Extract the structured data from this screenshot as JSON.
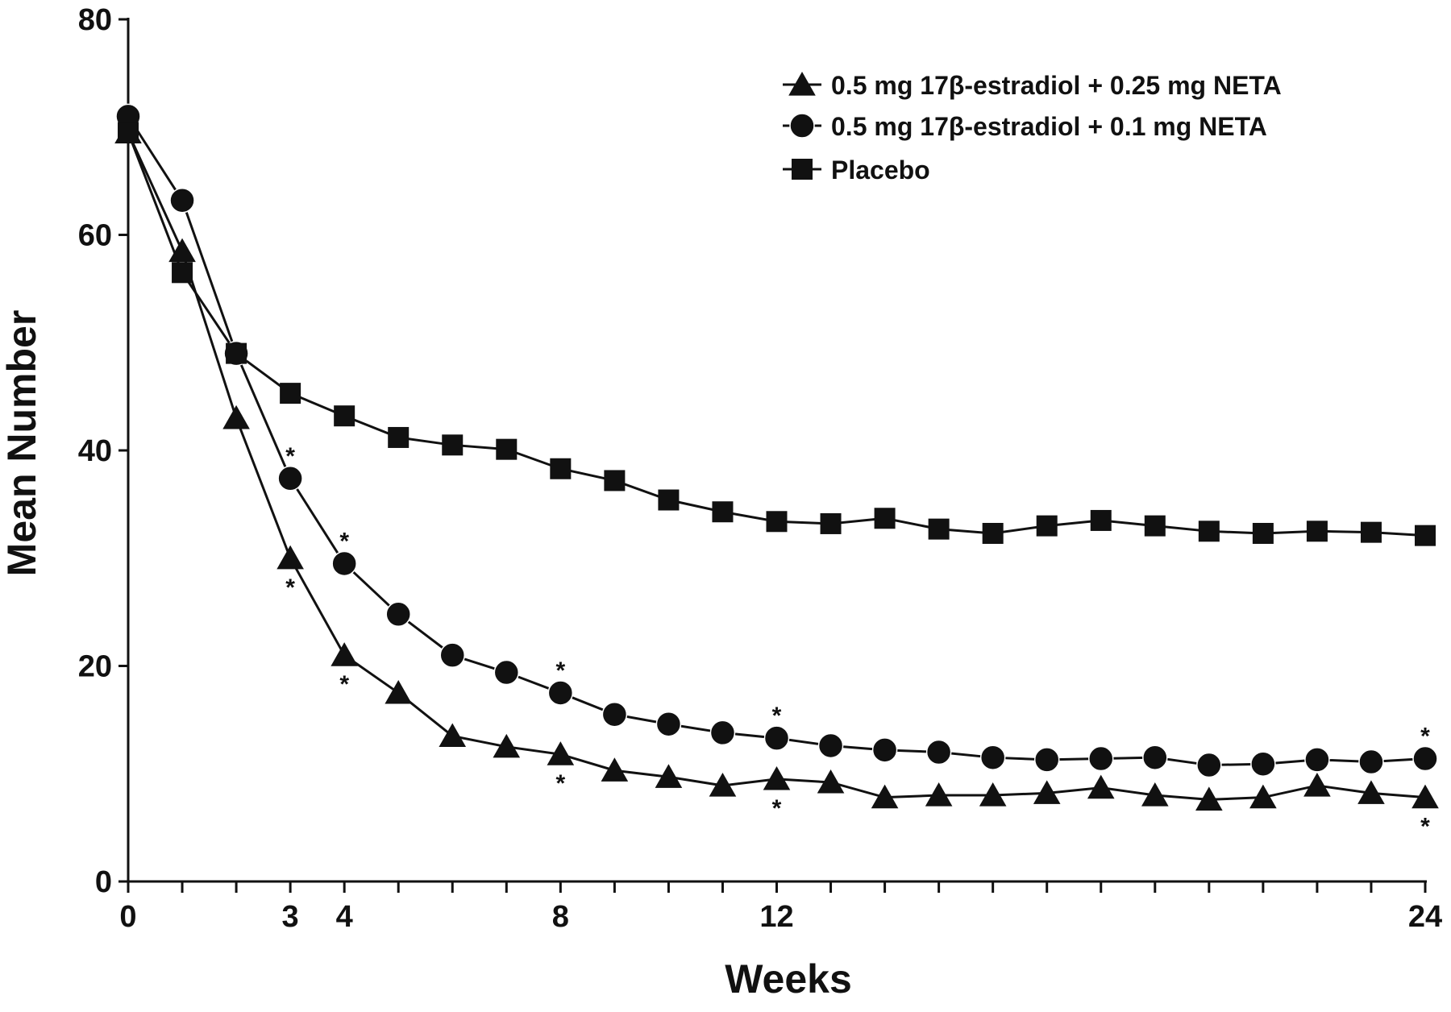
{
  "chart_data": {
    "type": "line",
    "xlabel": "Weeks",
    "ylabel": "Mean Number",
    "xlim": [
      0,
      24
    ],
    "ylim": [
      0,
      80
    ],
    "x_ticks_labeled": [
      "0",
      "3",
      "4",
      "8",
      "12",
      "24"
    ],
    "y_ticks_labeled": [
      "0",
      "20",
      "40",
      "60",
      "80"
    ],
    "grid": false,
    "legend_position": "top-right",
    "series": [
      {
        "name": "0.5 mg 17β-estradiol + 0.25 mg NETA",
        "marker": "triangle",
        "values": [
          69.5,
          58.5,
          43,
          30,
          21,
          17.5,
          13.5,
          12.5,
          11.8,
          10.3,
          9.7,
          8.9,
          9.5,
          9.2,
          7.8,
          8,
          8,
          8.2,
          8.7,
          8,
          7.6,
          7.8,
          8.9,
          8.2,
          7.8
        ],
        "significance_markers_below": [
          3,
          4,
          8,
          12,
          24
        ]
      },
      {
        "name": "0.5 mg 17β-estradiol + 0.1 mg NETA",
        "marker": "circle",
        "values": [
          71,
          63.2,
          49,
          37.4,
          29.5,
          24.8,
          21,
          19.4,
          17.5,
          15.5,
          14.6,
          13.8,
          13.3,
          12.6,
          12.2,
          12,
          11.5,
          11.3,
          11.4,
          11.5,
          10.8,
          10.9,
          11.3,
          11.1,
          11.4
        ],
        "significance_markers_above": [
          3,
          4,
          8,
          12,
          24
        ]
      },
      {
        "name": "Placebo",
        "marker": "square",
        "values": [
          69.5,
          56.5,
          49,
          45.3,
          43.2,
          41.2,
          40.5,
          40.1,
          38.3,
          37.2,
          35.4,
          34.3,
          33.4,
          33.2,
          33.7,
          32.7,
          32.3,
          33,
          33.5,
          33,
          32.5,
          32.3,
          32.5,
          32.4,
          32.1
        ]
      }
    ]
  }
}
